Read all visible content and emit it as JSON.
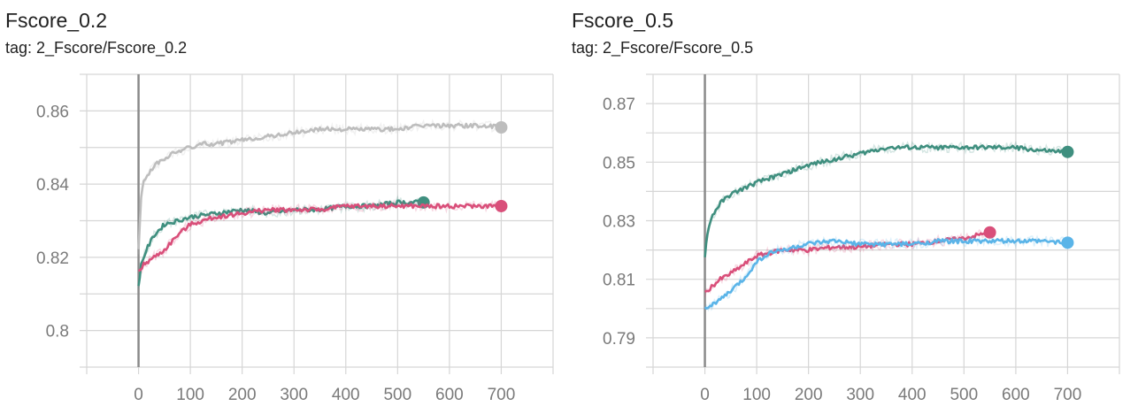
{
  "charts": [
    {
      "title": "Fscore_0.2",
      "tag": "tag: 2_Fscore/Fscore_0.2",
      "chart_data": {
        "type": "line",
        "xlim": [
          -100,
          800
        ],
        "ylim": [
          0.79,
          0.87
        ],
        "xticks": [
          0,
          100,
          200,
          300,
          400,
          500,
          600,
          700
        ],
        "yticks": [
          0.8,
          0.82,
          0.84,
          0.86
        ],
        "ytick_labels": [
          "0.8",
          "0.82",
          "0.84",
          "0.86"
        ],
        "grid": true,
        "series": [
          {
            "color": "#bdbdbd",
            "x": [
              0,
              5,
              10,
              20,
              30,
              50,
              75,
              100,
              125,
              150,
              200,
              250,
              300,
              350,
              400,
              450,
              500,
              550,
              600,
              650,
              700
            ],
            "y": [
              0.822,
              0.836,
              0.841,
              0.843,
              0.845,
              0.847,
              0.849,
              0.85,
              0.851,
              0.851,
              0.852,
              0.853,
              0.854,
              0.855,
              0.855,
              0.855,
              0.855,
              0.856,
              0.856,
              0.856,
              0.8555
            ]
          },
          {
            "color": "#3f8f7f",
            "x": [
              0,
              5,
              15,
              30,
              50,
              75,
              100,
              150,
              200,
              250,
              300,
              350,
              400,
              450,
              500,
              550
            ],
            "y": [
              0.812,
              0.818,
              0.822,
              0.826,
              0.829,
              0.83,
              0.831,
              0.832,
              0.833,
              0.832,
              0.833,
              0.833,
              0.834,
              0.834,
              0.835,
              0.835
            ]
          },
          {
            "color": "#d94f7a",
            "x": [
              0,
              10,
              30,
              50,
              75,
              100,
              150,
              200,
              250,
              300,
              350,
              400,
              450,
              500,
              550,
              600,
              650,
              700
            ],
            "y": [
              0.816,
              0.818,
              0.82,
              0.822,
              0.826,
              0.829,
              0.831,
              0.832,
              0.833,
              0.833,
              0.833,
              0.834,
              0.834,
              0.834,
              0.834,
              0.834,
              0.834,
              0.834
            ]
          }
        ]
      },
      "colors": {
        "grid": "#d6d6d6",
        "axis": "#bdbdbd",
        "zero_line": "#8a8a8a",
        "label": "#7a7a7a"
      }
    },
    {
      "title": "Fscore_0.5",
      "tag": "tag: 2_Fscore/Fscore_0.5",
      "chart_data": {
        "type": "line",
        "xlim": [
          -100,
          800
        ],
        "ylim": [
          0.78,
          0.88
        ],
        "xticks": [
          0,
          100,
          200,
          300,
          400,
          500,
          600,
          700
        ],
        "yticks": [
          0.79,
          0.81,
          0.83,
          0.85,
          0.87
        ],
        "ytick_labels": [
          "0.79",
          "0.81",
          "0.83",
          "0.85",
          "0.87"
        ],
        "grid": true,
        "series": [
          {
            "color": "#3f8f7f",
            "x": [
              0,
              5,
              15,
              30,
              50,
              75,
              100,
              150,
              200,
              250,
              300,
              350,
              400,
              450,
              500,
              550,
              600,
              650,
              700
            ],
            "y": [
              0.818,
              0.826,
              0.832,
              0.836,
              0.839,
              0.841,
              0.843,
              0.846,
              0.849,
              0.851,
              0.853,
              0.855,
              0.855,
              0.855,
              0.855,
              0.855,
              0.855,
              0.854,
              0.8535
            ]
          },
          {
            "color": "#d94f7a",
            "x": [
              0,
              10,
              30,
              50,
              75,
              100,
              150,
              200,
              250,
              300,
              350,
              400,
              450,
              500,
              550
            ],
            "y": [
              0.805,
              0.807,
              0.81,
              0.812,
              0.815,
              0.818,
              0.82,
              0.82,
              0.821,
              0.821,
              0.822,
              0.822,
              0.823,
              0.824,
              0.826
            ]
          },
          {
            "color": "#5ab4e8",
            "x": [
              0,
              10,
              30,
              50,
              75,
              100,
              125,
              150,
              200,
              250,
              300,
              350,
              400,
              450,
              500,
              550,
              600,
              650,
              700
            ],
            "y": [
              0.8,
              0.801,
              0.803,
              0.806,
              0.81,
              0.816,
              0.819,
              0.82,
              0.822,
              0.823,
              0.822,
              0.822,
              0.822,
              0.823,
              0.823,
              0.823,
              0.823,
              0.823,
              0.8225
            ]
          }
        ]
      },
      "colors": {
        "grid": "#d6d6d6",
        "axis": "#bdbdbd",
        "zero_line": "#8a8a8a",
        "label": "#7a7a7a"
      }
    }
  ]
}
